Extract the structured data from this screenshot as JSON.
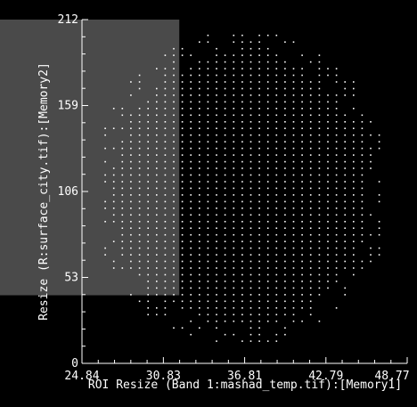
{
  "chart_data": {
    "type": "scatter",
    "xlabel": "ROI Resize (Band 1:mashad_temp.tif):[Memory1]",
    "ylabel": "Resize (R:surface_city.tif):[Memory2]",
    "xlim": [
      24.84,
      48.77
    ],
    "ylim": [
      0,
      212
    ],
    "x_ticks": [
      "24.84",
      "30.83",
      "36.81",
      "42.79",
      "48.77"
    ],
    "y_ticks": [
      "0",
      "53",
      "106",
      "159",
      "212"
    ],
    "grid": false,
    "point_color": "#ffffff",
    "background_color": "#000000",
    "highlight_region": {
      "x": [
        24.84,
        32.0
      ],
      "y": [
        42,
        212
      ],
      "color": "#4a4a4a"
    },
    "point_cloud": {
      "x_range": [
        26.5,
        47.0
      ],
      "y_range": [
        10,
        204
      ],
      "x_step": 0.63,
      "y_step": 4.1,
      "shape": "ellipse",
      "center": [
        36.5,
        108
      ],
      "semi_axis_x": 11.2,
      "semi_axis_y": 98
    }
  }
}
